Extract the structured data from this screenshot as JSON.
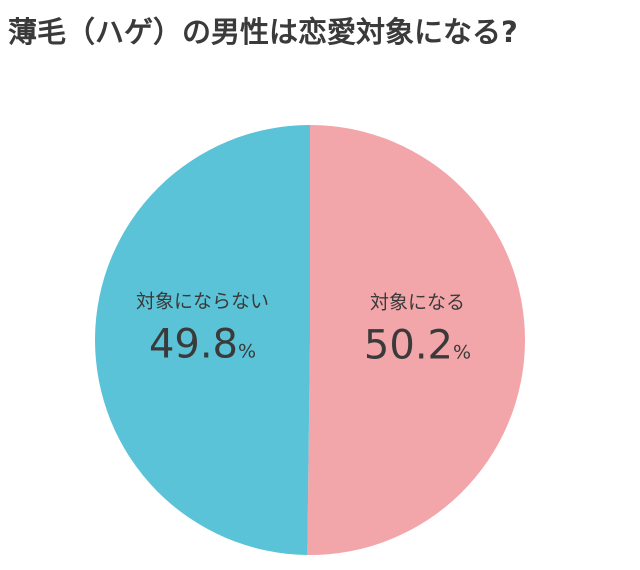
{
  "chart_data": {
    "type": "pie",
    "title": "薄毛（ハゲ）の男性は恋愛対象になる?",
    "categories": [
      "対象になる",
      "対象にならない"
    ],
    "values": [
      50.2,
      49.8
    ],
    "value_labels": [
      "50.2%",
      "49.8%"
    ],
    "colors": [
      "#f3a6aa",
      "#5bc3d8"
    ]
  }
}
